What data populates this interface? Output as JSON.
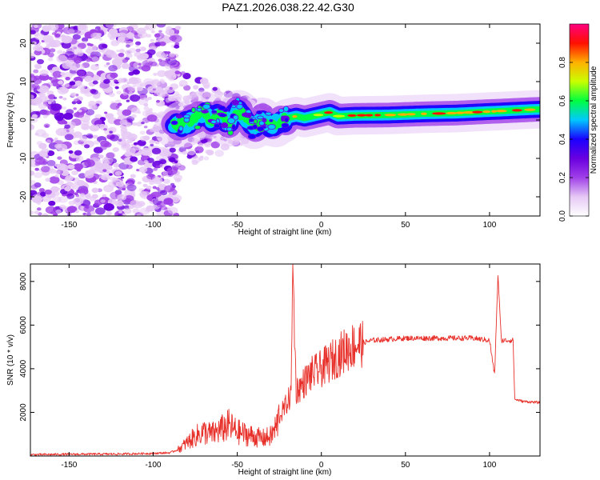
{
  "figure": {
    "title": "PAZ1.2026.038.22.42.G30"
  },
  "chart_data": [
    {
      "type": "heatmap",
      "xlabel": "Height of straight line (km)",
      "ylabel": "Frequency (Hz)",
      "xlim": [
        -173,
        130
      ],
      "ylim": [
        -25,
        25
      ],
      "xticks": [
        -150,
        -100,
        -50,
        0,
        50,
        100
      ],
      "yticks": [
        -20,
        -10,
        0,
        10,
        20
      ],
      "colorbar": {
        "label": "Normalized spectral amplitude",
        "range": [
          0,
          1
        ],
        "ticks": [
          0.0,
          0.2,
          0.4,
          0.6,
          0.8
        ],
        "tick_labels": [
          "0.0",
          "0.2",
          "0.4",
          "0.6",
          "0.8"
        ],
        "colormap": [
          "#ffffff",
          "#e6c8f5",
          "#a040e8",
          "#6a00e0",
          "#1a00ff",
          "#00c8ff",
          "#00ff40",
          "#c8ff00",
          "#ffb000",
          "#ff1000",
          "#ff0080"
        ]
      },
      "ridge": {
        "description_points": [
          [
            -88,
            -1.5
          ],
          [
            -80,
            -1.0
          ],
          [
            -75,
            0.5
          ],
          [
            -70,
            2.0
          ],
          [
            -65,
            0.0
          ],
          [
            -60,
            1.5
          ],
          [
            -55,
            -1.0
          ],
          [
            -50,
            2.5
          ],
          [
            -45,
            0.5
          ],
          [
            -40,
            -2.0
          ],
          [
            -35,
            0.0
          ],
          [
            -30,
            -1.5
          ],
          [
            -25,
            -0.5
          ],
          [
            -20,
            0.5
          ],
          [
            -15,
            1.0
          ],
          [
            -10,
            0.5
          ],
          [
            -5,
            1.0
          ],
          [
            0,
            1.5
          ],
          [
            5,
            2.0
          ],
          [
            10,
            1.0
          ],
          [
            20,
            1.2
          ],
          [
            40,
            1.3
          ],
          [
            60,
            1.6
          ],
          [
            80,
            1.8
          ],
          [
            100,
            2.2
          ],
          [
            110,
            2.4
          ],
          [
            120,
            2.6
          ],
          [
            130,
            2.8
          ]
        ]
      }
    },
    {
      "type": "line",
      "xlabel": "Height of straight line (km)",
      "ylabel": "SNR (10 * v/v)",
      "xlim": [
        -173,
        130
      ],
      "ylim": [
        0,
        8800
      ],
      "xticks": [
        -150,
        -100,
        -50,
        0,
        50,
        100
      ],
      "yticks": [
        2000,
        4000,
        6000,
        8000
      ],
      "color": "#e8302a",
      "series": [
        {
          "name": "SNR",
          "x": [
            -173,
            -150,
            -120,
            -100,
            -90,
            -85,
            -80,
            -75,
            -70,
            -65,
            -60,
            -55,
            -50,
            -45,
            -40,
            -35,
            -30,
            -27,
            -25,
            -22,
            -20,
            -18,
            -17,
            -15,
            -12,
            -10,
            -8,
            -5,
            -2,
            0,
            5,
            10,
            15,
            20,
            25,
            30,
            40,
            50,
            60,
            70,
            80,
            90,
            100,
            103,
            105,
            107,
            110,
            114,
            115,
            120,
            130
          ],
          "y": [
            60,
            80,
            90,
            120,
            150,
            300,
            600,
            900,
            1100,
            1000,
            1200,
            1400,
            1100,
            1000,
            900,
            800,
            900,
            1300,
            1800,
            2200,
            2500,
            2800,
            8800,
            3000,
            3200,
            3400,
            3600,
            3800,
            3900,
            4000,
            4300,
            4600,
            4900,
            5100,
            5200,
            5300,
            5350,
            5400,
            5400,
            5400,
            5400,
            5400,
            5300,
            3700,
            8300,
            5300,
            5300,
            5300,
            2600,
            2500,
            2450
          ]
        }
      ]
    }
  ]
}
